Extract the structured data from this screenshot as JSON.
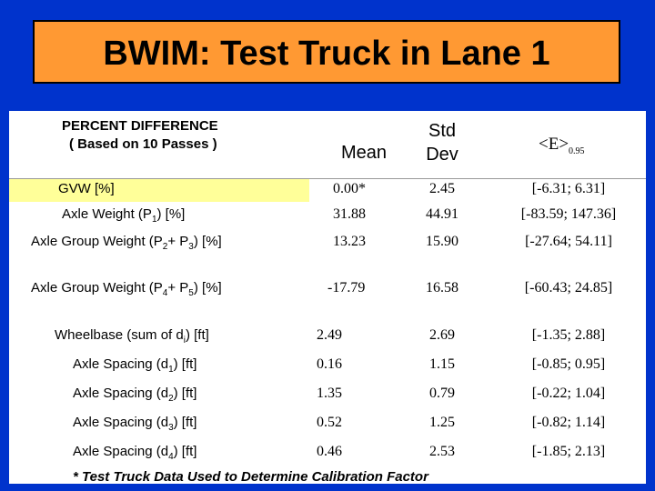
{
  "title": "BWIM: Test Truck in Lane 1",
  "header": {
    "line1": "PERCENT DIFFERENCE",
    "line2": "( Based on 10 Passes )",
    "mean": "Mean",
    "std1": "Std",
    "std2": "Dev",
    "e": "<E>",
    "e_sub": "0.95"
  },
  "rows": [
    {
      "pre": "GVW [%]",
      "sub": "",
      "mid": "",
      "sub2": "",
      "post": "",
      "mean": "0.00*",
      "std": "2.45",
      "e": "[-6.31; 6.31]"
    },
    {
      "pre": "Axle Weight (P",
      "sub": "1",
      "mid": "",
      "sub2": "",
      "post": ") [%]",
      "mean": "31.88",
      "std": "44.91",
      "e": "[-83.59; 147.36]"
    },
    {
      "pre": "Axle Group Weight (P",
      "sub": "2",
      "mid": "+ P",
      "sub2": "3",
      "post": ") [%]",
      "mean": "13.23",
      "std": "15.90",
      "e": "[-27.64; 54.11]"
    },
    {
      "pre": "Axle Group Weight (P",
      "sub": "4",
      "mid": "+ P",
      "sub2": "5",
      "post": ") [%]",
      "mean": "-17.79",
      "std": "16.58",
      "e": "[-60.43; 24.85]"
    },
    {
      "pre": "Wheelbase (sum of d",
      "sub": "i",
      "mid": "",
      "sub2": "",
      "post": ") [ft]",
      "mean": "2.49",
      "std": "2.69",
      "e": "[-1.35; 2.88]"
    },
    {
      "pre": "Axle Spacing (d",
      "sub": "1",
      "mid": "",
      "sub2": "",
      "post": ") [ft]",
      "mean": "0.16",
      "std": "1.15",
      "e": "[-0.85; 0.95]"
    },
    {
      "pre": "Axle Spacing (d",
      "sub": "2",
      "mid": "",
      "sub2": "",
      "post": ") [ft]",
      "mean": "1.35",
      "std": "0.79",
      "e": "[-0.22; 1.04]"
    },
    {
      "pre": "Axle Spacing (d",
      "sub": "3",
      "mid": "",
      "sub2": "",
      "post": ") [ft]",
      "mean": "0.52",
      "std": "1.25",
      "e": "[-0.82; 1.14]"
    },
    {
      "pre": "Axle Spacing (d",
      "sub": "4",
      "mid": "",
      "sub2": "",
      "post": ") [ft]",
      "mean": "0.46",
      "std": "2.53",
      "e": "[-1.85; 2.13]"
    }
  ],
  "footnote": "* Test Truck Data Used to Determine Calibration Factor"
}
